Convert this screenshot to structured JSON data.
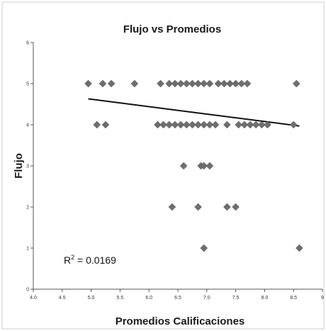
{
  "chart_data": {
    "type": "scatter",
    "title": "Flujo vs Promedios",
    "xlabel": "Promedios Calificaciones",
    "ylabel": "Flujo",
    "xlim": [
      4.0,
      9.0
    ],
    "ylim": [
      0,
      6
    ],
    "x_ticks": [
      "4.0",
      "4.5",
      "5.0",
      "5.5",
      "6.0",
      "6.5",
      "7.0",
      "7.5",
      "8.0",
      "8.5",
      "9"
    ],
    "y_ticks": [
      "0",
      "1",
      "2",
      "3",
      "4",
      "5",
      "6"
    ],
    "grid": false,
    "legend": "none",
    "annotation": {
      "prefix": "R",
      "sup": "2",
      "suffix": " = 0.0169"
    },
    "marker_color": "#6e6e6e",
    "trendline": {
      "x": [
        4.95,
        8.6
      ],
      "y": [
        4.63,
        3.97
      ]
    },
    "points": [
      {
        "x": 4.95,
        "y": 5
      },
      {
        "x": 5.2,
        "y": 5
      },
      {
        "x": 5.35,
        "y": 5
      },
      {
        "x": 5.75,
        "y": 5
      },
      {
        "x": 6.2,
        "y": 5
      },
      {
        "x": 6.35,
        "y": 5
      },
      {
        "x": 6.45,
        "y": 5
      },
      {
        "x": 6.55,
        "y": 5
      },
      {
        "x": 6.65,
        "y": 5
      },
      {
        "x": 6.75,
        "y": 5
      },
      {
        "x": 6.85,
        "y": 5
      },
      {
        "x": 6.95,
        "y": 5
      },
      {
        "x": 7.05,
        "y": 5
      },
      {
        "x": 7.2,
        "y": 5
      },
      {
        "x": 7.3,
        "y": 5
      },
      {
        "x": 7.4,
        "y": 5
      },
      {
        "x": 7.5,
        "y": 5
      },
      {
        "x": 7.6,
        "y": 5
      },
      {
        "x": 7.7,
        "y": 5
      },
      {
        "x": 8.55,
        "y": 5
      },
      {
        "x": 5.1,
        "y": 4
      },
      {
        "x": 5.25,
        "y": 4
      },
      {
        "x": 6.15,
        "y": 4
      },
      {
        "x": 6.25,
        "y": 4
      },
      {
        "x": 6.35,
        "y": 4
      },
      {
        "x": 6.45,
        "y": 4
      },
      {
        "x": 6.55,
        "y": 4
      },
      {
        "x": 6.65,
        "y": 4
      },
      {
        "x": 6.75,
        "y": 4
      },
      {
        "x": 6.85,
        "y": 4
      },
      {
        "x": 6.95,
        "y": 4
      },
      {
        "x": 7.05,
        "y": 4
      },
      {
        "x": 7.15,
        "y": 4
      },
      {
        "x": 7.35,
        "y": 4
      },
      {
        "x": 7.55,
        "y": 4
      },
      {
        "x": 7.65,
        "y": 4
      },
      {
        "x": 7.75,
        "y": 4
      },
      {
        "x": 7.85,
        "y": 4
      },
      {
        "x": 7.95,
        "y": 4
      },
      {
        "x": 8.05,
        "y": 4
      },
      {
        "x": 8.5,
        "y": 4
      },
      {
        "x": 6.6,
        "y": 3
      },
      {
        "x": 6.9,
        "y": 3
      },
      {
        "x": 6.95,
        "y": 3
      },
      {
        "x": 7.05,
        "y": 3
      },
      {
        "x": 6.4,
        "y": 2
      },
      {
        "x": 6.85,
        "y": 2
      },
      {
        "x": 7.35,
        "y": 2
      },
      {
        "x": 7.5,
        "y": 2
      },
      {
        "x": 6.95,
        "y": 1
      },
      {
        "x": 8.6,
        "y": 1
      }
    ]
  }
}
